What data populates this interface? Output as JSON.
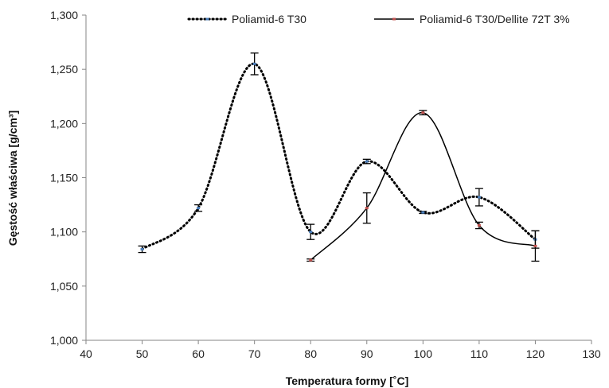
{
  "chart_data": {
    "type": "line",
    "title": "",
    "xlabel": "Temperatura formy [˚C]",
    "ylabel": "Gęstość właściwa [g/cm³]",
    "xlim": [
      40,
      130
    ],
    "ylim": [
      1.0,
      1.3
    ],
    "x_ticks": [
      "40",
      "50",
      "60",
      "70",
      "80",
      "90",
      "100",
      "110",
      "120",
      "130"
    ],
    "y_ticks": [
      "1,000",
      "1,050",
      "1,100",
      "1,150",
      "1,200",
      "1,250",
      "1,300"
    ],
    "grid": false,
    "legend_position": "top",
    "series": [
      {
        "name": "Poliamid-6 T30",
        "line_style": "dotted",
        "marker_color": "#4a7ebb",
        "x": [
          50,
          60,
          70,
          80,
          90,
          100,
          110,
          120
        ],
        "y": [
          1.084,
          1.122,
          1.255,
          1.1,
          1.165,
          1.118,
          1.132,
          1.093
        ],
        "error": [
          0.003,
          0.003,
          0.01,
          0.007,
          0.002,
          0.001,
          0.008,
          0.008
        ]
      },
      {
        "name": "Poliamid-6 T30/Dellite 72T 3%",
        "line_style": "solid",
        "marker_color": "#c0504d",
        "x": [
          80,
          90,
          100,
          110,
          120
        ],
        "y": [
          1.074,
          1.122,
          1.21,
          1.106,
          1.087
        ],
        "error": [
          0.001,
          0.014,
          0.002,
          0.003,
          0.014
        ]
      }
    ]
  }
}
